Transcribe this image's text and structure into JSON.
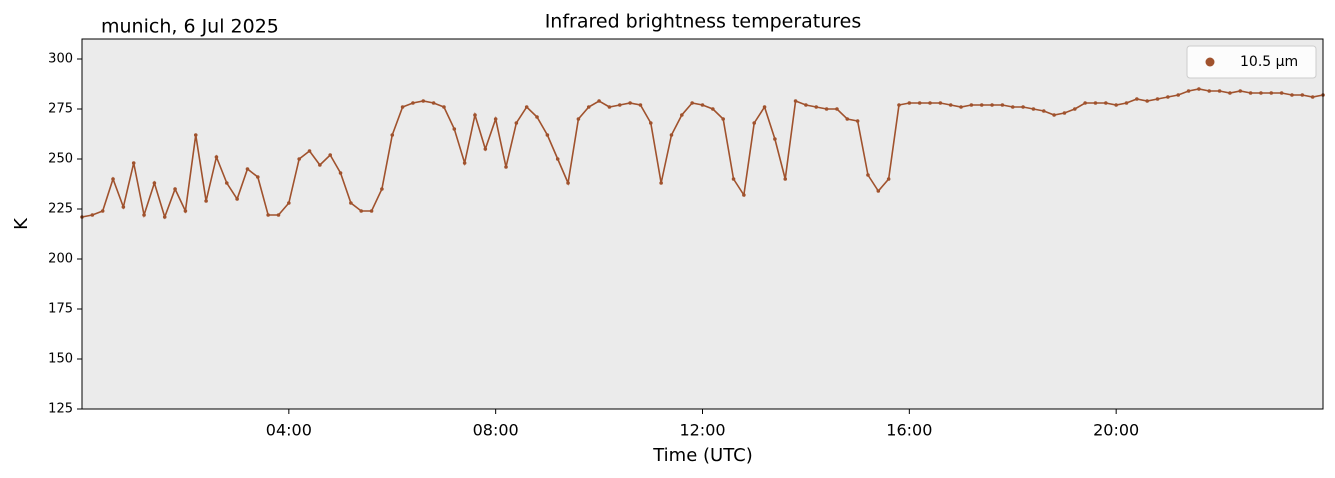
{
  "chart_data": {
    "type": "scatter",
    "title": "Infrared brightness temperatures",
    "annotation": "munich, 6 Jul 2025",
    "xlabel": "Time (UTC)",
    "ylabel": "K",
    "xlim": [
      0,
      24
    ],
    "ylim": [
      125,
      310
    ],
    "xticks": [
      {
        "value": 4,
        "label": "04:00"
      },
      {
        "value": 8,
        "label": "08:00"
      },
      {
        "value": 12,
        "label": "12:00"
      },
      {
        "value": 16,
        "label": "16:00"
      },
      {
        "value": 20,
        "label": "20:00"
      }
    ],
    "yticks": [
      125,
      150,
      175,
      200,
      225,
      250,
      275,
      300
    ],
    "legend": "upper right",
    "x": [
      0.0,
      0.2,
      0.4,
      0.6,
      0.8,
      1.0,
      1.2,
      1.4,
      1.6,
      1.8,
      2.0,
      2.2,
      2.4,
      2.6,
      2.8,
      3.0,
      3.2,
      3.4,
      3.6,
      3.8,
      4.0,
      4.2,
      4.4,
      4.6,
      4.8,
      5.0,
      5.2,
      5.4,
      5.6,
      5.8,
      6.0,
      6.2,
      6.4,
      6.6,
      6.8,
      7.0,
      7.2,
      7.4,
      7.6,
      7.8,
      8.0,
      8.2,
      8.4,
      8.6,
      8.8,
      9.0,
      9.2,
      9.4,
      9.6,
      9.8,
      10.0,
      10.2,
      10.4,
      10.6,
      10.8,
      11.0,
      11.2,
      11.4,
      11.6,
      11.8,
      12.0,
      12.2,
      12.4,
      12.6,
      12.8,
      13.0,
      13.2,
      13.4,
      13.6,
      13.8,
      14.0,
      14.2,
      14.4,
      14.6,
      14.8,
      15.0,
      15.2,
      15.4,
      15.6,
      15.8,
      16.0,
      16.2,
      16.4,
      16.6,
      16.8,
      17.0,
      17.2,
      17.4,
      17.6,
      17.8,
      18.0,
      18.2,
      18.4,
      18.6,
      18.8,
      19.0,
      19.2,
      19.4,
      19.6,
      19.8,
      20.0,
      20.2,
      20.4,
      20.6,
      20.8,
      21.0,
      21.2,
      21.4,
      21.6,
      21.8,
      22.0,
      22.2,
      22.4,
      22.6,
      22.8,
      23.0,
      23.2,
      23.4,
      23.6,
      23.8,
      24.0
    ],
    "series": [
      {
        "name": "10.5 µm",
        "color": "#a0522d",
        "values": [
          221,
          222,
          224,
          240,
          226,
          248,
          222,
          238,
          221,
          235,
          224,
          262,
          229,
          251,
          238,
          230,
          245,
          241,
          222,
          222,
          228,
          250,
          254,
          247,
          252,
          243,
          228,
          224,
          224,
          235,
          262,
          276,
          278,
          279,
          278,
          276,
          265,
          248,
          272,
          255,
          270,
          246,
          268,
          276,
          271,
          262,
          250,
          238,
          270,
          276,
          279,
          276,
          277,
          278,
          277,
          268,
          238,
          262,
          272,
          278,
          277,
          275,
          270,
          240,
          232,
          268,
          276,
          260,
          240,
          279,
          277,
          276,
          275,
          275,
          270,
          269,
          242,
          234,
          240,
          277,
          278,
          278,
          278,
          278,
          277,
          276,
          277,
          277,
          277,
          277,
          276,
          276,
          275,
          274,
          272,
          273,
          275,
          278,
          278,
          278,
          277,
          278,
          280,
          279,
          280,
          281,
          282,
          284,
          285,
          284,
          284,
          283,
          284,
          283,
          283,
          283,
          283,
          282,
          282,
          281,
          282
        ]
      }
    ]
  }
}
